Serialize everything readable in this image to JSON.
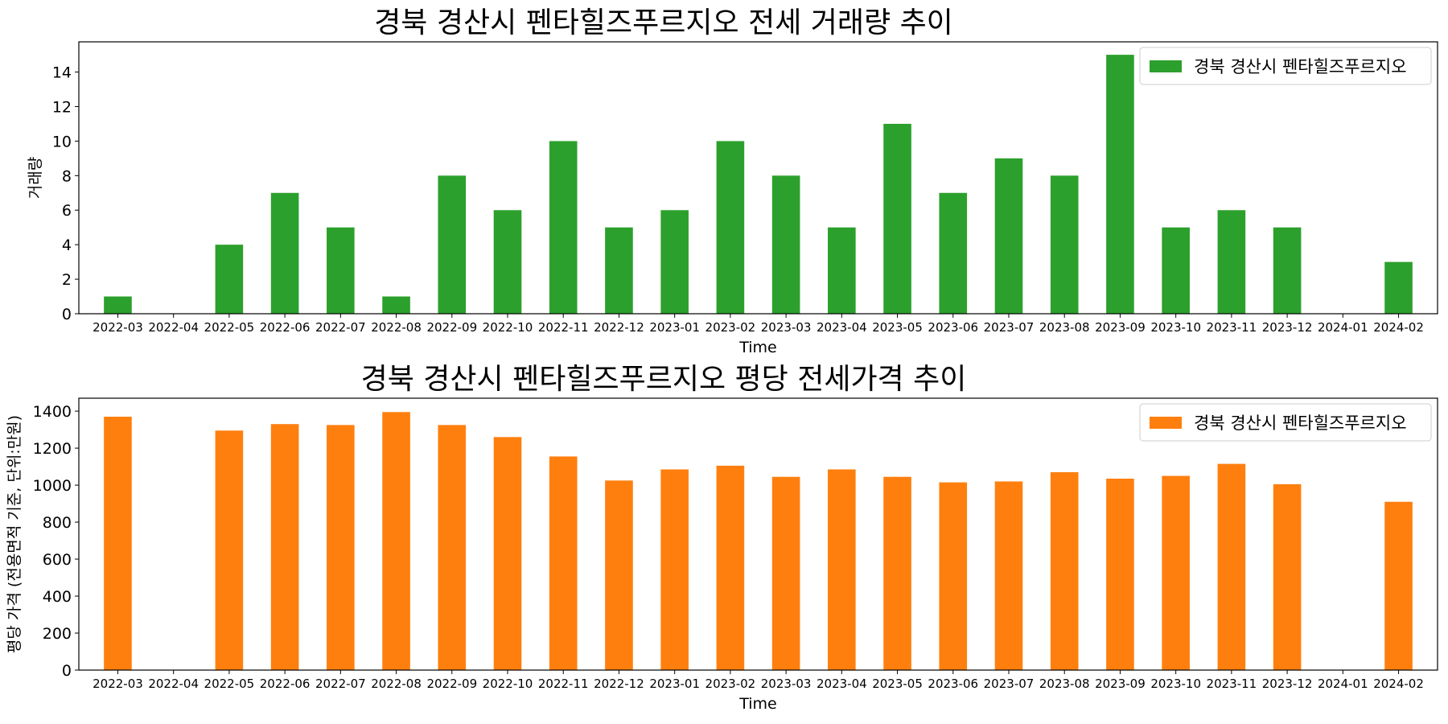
{
  "chart_data": [
    {
      "type": "bar",
      "title": "경북 경산시 펜타힐즈푸르지오 전세 거래량 추이",
      "xlabel": "Time",
      "ylabel": "거래량",
      "ylim": [
        0,
        15.75
      ],
      "yticks": [
        0,
        2,
        4,
        6,
        8,
        10,
        12,
        14
      ],
      "grid": false,
      "legend_position": "top-right",
      "color": "#2ca02c",
      "categories": [
        "2022-03",
        "2022-04",
        "2022-05",
        "2022-06",
        "2022-07",
        "2022-08",
        "2022-09",
        "2022-10",
        "2022-11",
        "2022-12",
        "2023-01",
        "2023-02",
        "2023-03",
        "2023-04",
        "2023-05",
        "2023-06",
        "2023-07",
        "2023-08",
        "2023-09",
        "2023-10",
        "2023-11",
        "2023-12",
        "2024-01",
        "2024-02"
      ],
      "series": [
        {
          "name": "경북 경산시 펜타힐즈푸르지오",
          "values": [
            1,
            0,
            4,
            7,
            5,
            1,
            8,
            6,
            10,
            5,
            6,
            10,
            8,
            5,
            11,
            7,
            9,
            8,
            15,
            5,
            6,
            5,
            0,
            3
          ]
        }
      ]
    },
    {
      "type": "bar",
      "title": "경북 경산시 펜타힐즈푸르지오 평당 전세가격 추이",
      "xlabel": "Time",
      "ylabel": "평당 가격 (전용면적 기준, 단위:만원)",
      "ylim": [
        0,
        1470
      ],
      "yticks": [
        0,
        200,
        400,
        600,
        800,
        1000,
        1200,
        1400
      ],
      "grid": false,
      "legend_position": "top-right",
      "color": "#ff7f0e",
      "categories": [
        "2022-03",
        "2022-04",
        "2022-05",
        "2022-06",
        "2022-07",
        "2022-08",
        "2022-09",
        "2022-10",
        "2022-11",
        "2022-12",
        "2023-01",
        "2023-02",
        "2023-03",
        "2023-04",
        "2023-05",
        "2023-06",
        "2023-07",
        "2023-08",
        "2023-09",
        "2023-10",
        "2023-11",
        "2023-12",
        "2024-01",
        "2024-02"
      ],
      "series": [
        {
          "name": "경북 경산시 펜타힐즈푸르지오",
          "values": [
            1370,
            0,
            1295,
            1330,
            1325,
            1395,
            1325,
            1260,
            1155,
            1025,
            1085,
            1105,
            1045,
            1085,
            1045,
            1015,
            1020,
            1070,
            1035,
            1050,
            1115,
            1005,
            0,
            910
          ]
        }
      ]
    }
  ]
}
